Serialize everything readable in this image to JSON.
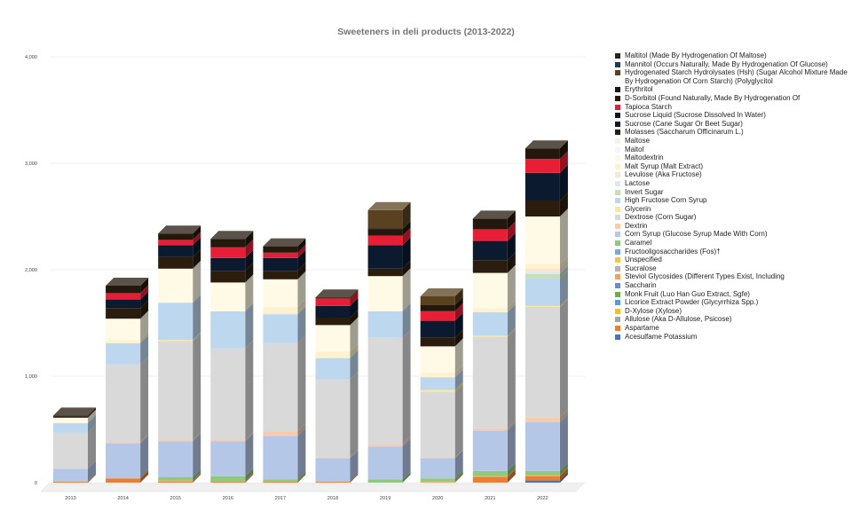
{
  "chart_data": {
    "type": "bar",
    "stacked": true,
    "title": "Sweeteners in deli products (2013-2022)",
    "xlabel": "",
    "ylabel": "",
    "ylim": [
      0,
      4000
    ],
    "yticks": [
      0,
      1000,
      2000,
      3000,
      4000
    ],
    "ytick_labels": [
      "0",
      "1,000",
      "2,000",
      "3,000",
      "4,000"
    ],
    "grid": true,
    "legend_position": "right",
    "categories": [
      "2013",
      "2014",
      "2015",
      "2016",
      "2017",
      "2018",
      "2019",
      "2020",
      "2021",
      "2022"
    ],
    "series": [
      {
        "name": "Acesulfame Potassium",
        "color": "#4472c4",
        "values": [
          0,
          0,
          0,
          0,
          0,
          0,
          0,
          0,
          0,
          20
        ]
      },
      {
        "name": "Aspartame",
        "color": "#ed7d31",
        "values": [
          10,
          40,
          10,
          10,
          10,
          10,
          0,
          0,
          50,
          40
        ]
      },
      {
        "name": "Allulose (Aka D-Allulose, Psicose)",
        "color": "#a5a5a5",
        "values": [
          0,
          0,
          0,
          0,
          0,
          0,
          0,
          0,
          0,
          0
        ]
      },
      {
        "name": "D-Xylose (Xylose)",
        "color": "#ffc000",
        "values": [
          0,
          0,
          0,
          0,
          0,
          0,
          0,
          0,
          0,
          0
        ]
      },
      {
        "name": "Licorice Extract Powder (Glycyrrhiza Spp.)",
        "color": "#5b9bd5",
        "values": [
          0,
          0,
          0,
          0,
          0,
          0,
          0,
          0,
          0,
          0
        ]
      },
      {
        "name": "Monk Fruit (Luo Han Guo Extract, Sgfe)",
        "color": "#70ad47",
        "values": [
          0,
          0,
          0,
          0,
          0,
          0,
          0,
          0,
          0,
          0
        ]
      },
      {
        "name": "Saccharin",
        "color": "#6b8cc8",
        "values": [
          0,
          0,
          0,
          0,
          0,
          0,
          0,
          0,
          0,
          0
        ]
      },
      {
        "name": "Steviol Glycosides (Different Types Exist, Including",
        "color": "#f4a261",
        "values": [
          0,
          0,
          10,
          0,
          0,
          0,
          0,
          10,
          10,
          10
        ]
      },
      {
        "name": "Sucralose",
        "color": "#b3b3b3",
        "values": [
          0,
          0,
          0,
          0,
          0,
          0,
          0,
          0,
          0,
          0
        ]
      },
      {
        "name": "Unspecified",
        "color": "#f6c544",
        "values": [
          0,
          0,
          0,
          0,
          0,
          0,
          0,
          0,
          0,
          0
        ]
      },
      {
        "name": "Fructooligosaccharides (Fos)†",
        "color": "#7aa7e0",
        "values": [
          0,
          0,
          0,
          0,
          0,
          0,
          0,
          0,
          0,
          0
        ]
      },
      {
        "name": "Caramel",
        "color": "#8fc97a",
        "values": [
          0,
          0,
          30,
          50,
          20,
          0,
          30,
          30,
          50,
          40
        ]
      },
      {
        "name": "Corn Syrup (Glucose Syrup Made With Corn)",
        "color": "#b4c7e7",
        "values": [
          120,
          330,
          340,
          330,
          410,
          220,
          310,
          190,
          380,
          460
        ]
      },
      {
        "name": "Dextrin",
        "color": "#f8cbad",
        "values": [
          0,
          10,
          10,
          10,
          40,
          10,
          20,
          10,
          20,
          40
        ]
      },
      {
        "name": "Dextrose (Corn Sugar)",
        "color": "#d9d9d9",
        "values": [
          340,
          730,
          930,
          860,
          830,
          730,
          1000,
          610,
          860,
          1040
        ]
      },
      {
        "name": "Glycerin",
        "color": "#ffe699",
        "values": [
          0,
          0,
          10,
          0,
          0,
          0,
          0,
          20,
          10,
          10
        ]
      },
      {
        "name": "High Fructose Corn Syrup",
        "color": "#bdd7ee",
        "values": [
          90,
          200,
          350,
          350,
          270,
          200,
          250,
          120,
          220,
          260
        ]
      },
      {
        "name": "Invert Sugar",
        "color": "#c5e0b4",
        "values": [
          0,
          0,
          0,
          0,
          0,
          0,
          0,
          0,
          0,
          40
        ]
      },
      {
        "name": "Lactose",
        "color": "#dde8f5",
        "values": [
          0,
          0,
          0,
          0,
          10,
          0,
          0,
          0,
          0,
          20
        ]
      },
      {
        "name": "Levulose (Aka Fructose)",
        "color": "#fbe5d6",
        "values": [
          0,
          0,
          0,
          0,
          0,
          0,
          0,
          0,
          0,
          30
        ]
      },
      {
        "name": "Malt Syrup (Malt Extract)",
        "color": "#fff2cc",
        "values": [
          0,
          30,
          0,
          0,
          60,
          60,
          0,
          40,
          40,
          40
        ]
      },
      {
        "name": "Maltodextrin",
        "color": "#fffae6",
        "values": [
          50,
          200,
          320,
          270,
          260,
          250,
          330,
          250,
          330,
          450
        ]
      },
      {
        "name": "Maltol",
        "color": "#f6f6f6",
        "values": [
          0,
          0,
          0,
          0,
          0,
          0,
          0,
          0,
          0,
          0
        ]
      },
      {
        "name": "Maltose",
        "color": "#f2f2f2",
        "values": [
          0,
          0,
          0,
          0,
          0,
          0,
          0,
          0,
          0,
          0
        ]
      },
      {
        "name": "Molasses (Saccharum Officinarum L.)",
        "color": "#2b1d0e",
        "values": [
          10,
          100,
          110,
          110,
          80,
          70,
          70,
          80,
          120,
          150
        ]
      },
      {
        "name": "Sucrose (Cane Sugar Or Beet Sugar)",
        "color": "#0b1a2e",
        "values": [
          0,
          80,
          110,
          120,
          120,
          110,
          220,
          160,
          180,
          260
        ]
      },
      {
        "name": "Sucrose Liquid (Sucrose Dissolved In Water)",
        "color": "#101424",
        "values": [
          0,
          0,
          0,
          0,
          0,
          0,
          0,
          0,
          0,
          0
        ]
      },
      {
        "name": "Tapioca Starch",
        "color": "#e81d36",
        "values": [
          0,
          60,
          50,
          100,
          50,
          70,
          90,
          90,
          110,
          130
        ]
      },
      {
        "name": "D-Sorbitol (Found Naturally, Made By Hydrogenation Of",
        "color": "#24180c",
        "values": [
          10,
          70,
          60,
          80,
          60,
          10,
          60,
          60,
          100,
          100
        ]
      },
      {
        "name": "Erythritol",
        "color": "#161616",
        "values": [
          0,
          0,
          0,
          0,
          0,
          0,
          10,
          0,
          0,
          0
        ]
      },
      {
        "name": "Hydrogenated Starch Hydrolysates (Hsh) (Sugar Alcohol Mixture Made By Hydrogenation Of Corn Starch) (Polyglycitol",
        "color": "#5a4220",
        "values": [
          0,
          0,
          0,
          0,
          0,
          0,
          170,
          80,
          0,
          0
        ]
      },
      {
        "name": "Mannitol (Occurs Naturally, Made By Hydrogenation Of Glucose)",
        "color": "#1f3864",
        "values": [
          0,
          0,
          0,
          0,
          0,
          0,
          0,
          0,
          0,
          0
        ]
      },
      {
        "name": "Maltitol (Made By Hydrogenation Of Maltose)",
        "color": "#262626",
        "values": [
          0,
          0,
          0,
          0,
          0,
          0,
          0,
          0,
          0,
          0
        ]
      }
    ]
  }
}
